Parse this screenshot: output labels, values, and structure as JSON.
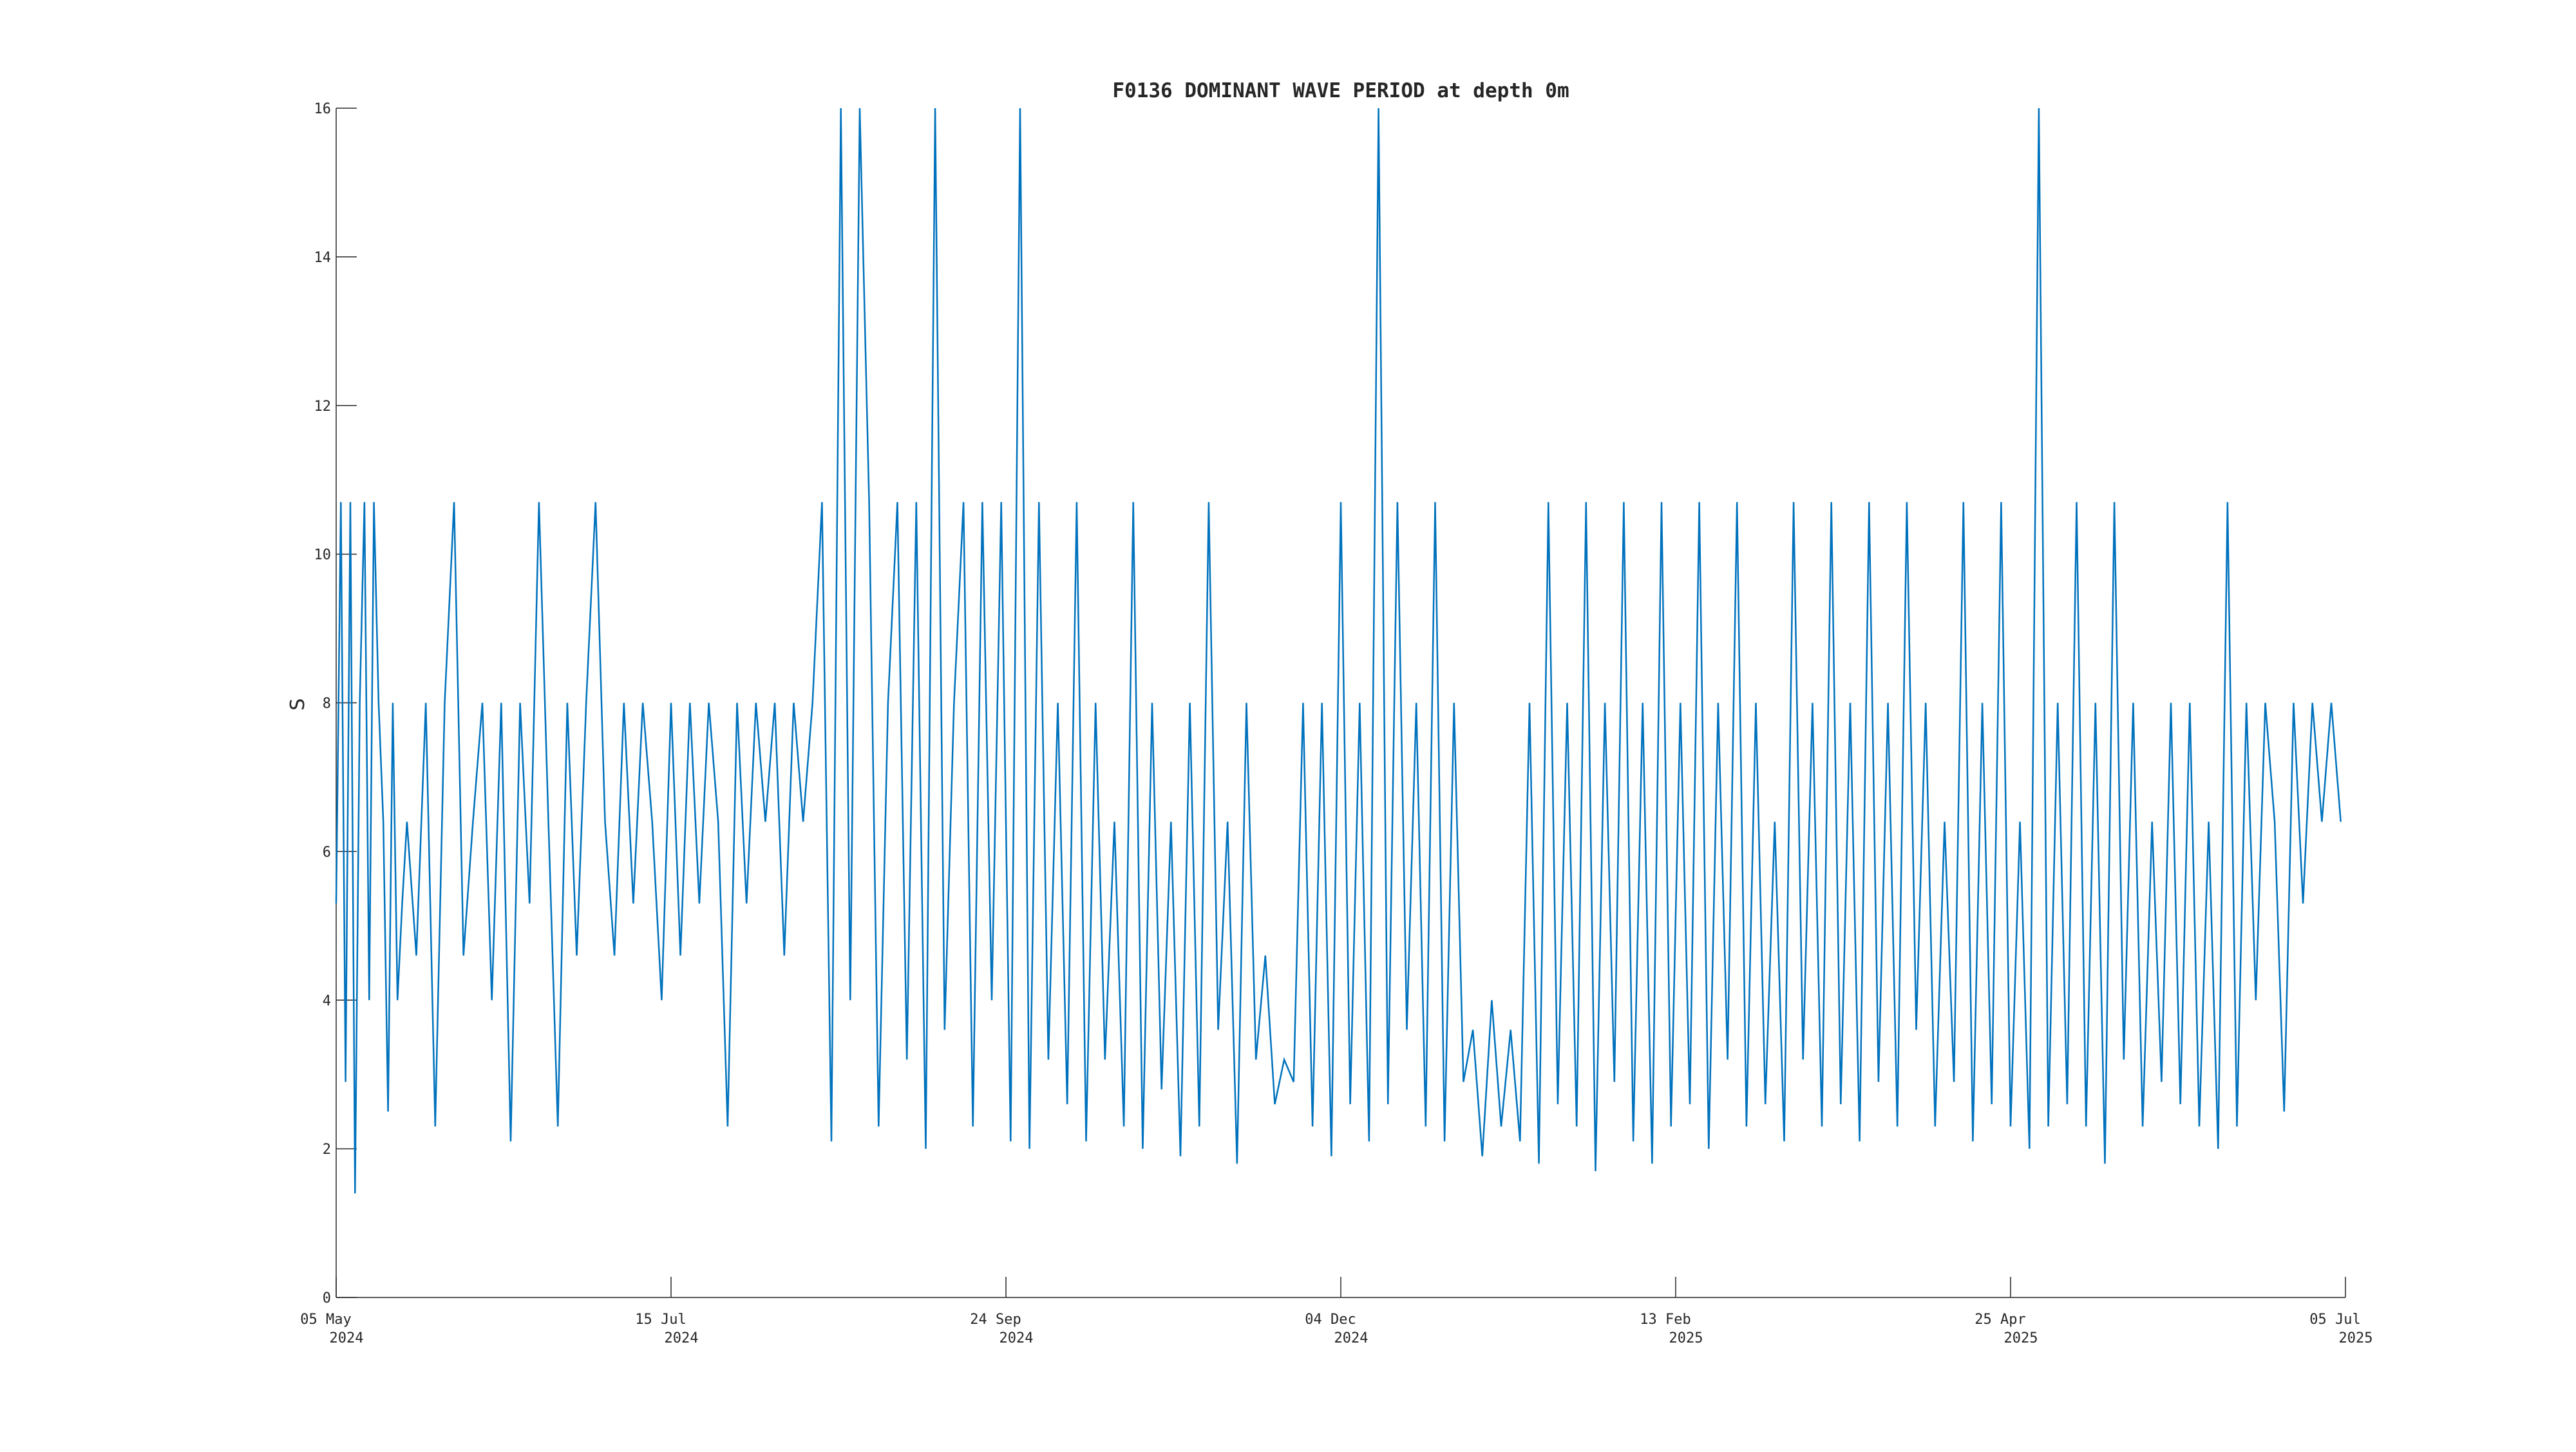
{
  "chart_data": {
    "type": "line",
    "title": "F0136 DOMINANT WAVE PERIOD at depth 0m",
    "xlabel": "",
    "ylabel": "S",
    "ylim": [
      0,
      16
    ],
    "xlim": [
      "2024-05-05",
      "2025-07-05"
    ],
    "grid": false,
    "line_color": "#0072bd",
    "y_ticks": [
      {
        "value": 0,
        "label": "0"
      },
      {
        "value": 2,
        "label": "2"
      },
      {
        "value": 4,
        "label": "4"
      },
      {
        "value": 6,
        "label": "6"
      },
      {
        "value": 8,
        "label": "8"
      },
      {
        "value": 10,
        "label": "10"
      },
      {
        "value": 12,
        "label": "12"
      },
      {
        "value": 14,
        "label": "14"
      },
      {
        "value": 16,
        "label": "16"
      }
    ],
    "x_ticks": [
      {
        "date": "2024-05-05",
        "label": "05 May",
        "sublabel": "2024"
      },
      {
        "date": "2024-07-15",
        "label": "15 Jul",
        "sublabel": "2024"
      },
      {
        "date": "2024-09-24",
        "label": "24 Sep",
        "sublabel": "2024"
      },
      {
        "date": "2024-12-04",
        "label": "04 Dec",
        "sublabel": "2024"
      },
      {
        "date": "2025-02-13",
        "label": "13 Feb",
        "sublabel": "2025"
      },
      {
        "date": "2025-04-25",
        "label": "25 Apr",
        "sublabel": "2025"
      },
      {
        "date": "2025-07-05",
        "label": "05 Jul",
        "sublabel": "2025"
      }
    ],
    "series": [
      {
        "x": [
          "2024-05-05",
          "2024-05-06",
          "2024-05-07",
          "2024-05-08",
          "2024-05-09",
          "2024-05-10",
          "2024-05-11",
          "2024-05-12",
          "2024-05-13",
          "2024-05-14",
          "2024-05-15",
          "2024-05-16",
          "2024-05-17",
          "2024-05-18",
          "2024-05-19",
          "2024-05-20",
          "2024-05-22",
          "2024-05-24",
          "2024-05-26",
          "2024-05-28",
          "2024-05-30",
          "2024-06-01",
          "2024-06-03",
          "2024-06-05",
          "2024-06-07",
          "2024-06-09",
          "2024-06-11",
          "2024-06-13",
          "2024-06-15",
          "2024-06-17",
          "2024-06-19",
          "2024-06-21",
          "2024-06-23",
          "2024-06-25",
          "2024-06-27",
          "2024-06-29",
          "2024-07-01",
          "2024-07-03",
          "2024-07-05",
          "2024-07-07",
          "2024-07-09",
          "2024-07-11",
          "2024-07-13",
          "2024-07-15",
          "2024-07-17",
          "2024-07-19",
          "2024-07-21",
          "2024-07-23",
          "2024-07-25",
          "2024-07-27",
          "2024-07-29",
          "2024-07-31",
          "2024-08-02",
          "2024-08-04",
          "2024-08-06",
          "2024-08-08",
          "2024-08-10",
          "2024-08-12",
          "2024-08-14",
          "2024-08-16",
          "2024-08-18",
          "2024-08-20",
          "2024-08-22",
          "2024-08-24",
          "2024-08-26",
          "2024-08-28",
          "2024-08-30",
          "2024-09-01",
          "2024-09-03",
          "2024-09-05",
          "2024-09-07",
          "2024-09-09",
          "2024-09-11",
          "2024-09-13",
          "2024-09-15",
          "2024-09-17",
          "2024-09-19",
          "2024-09-21",
          "2024-09-23",
          "2024-09-25",
          "2024-09-27",
          "2024-09-29",
          "2024-10-01",
          "2024-10-03",
          "2024-10-05",
          "2024-10-07",
          "2024-10-09",
          "2024-10-11",
          "2024-10-13",
          "2024-10-15",
          "2024-10-17",
          "2024-10-19",
          "2024-10-21",
          "2024-10-23",
          "2024-10-25",
          "2024-10-27",
          "2024-10-29",
          "2024-10-31",
          "2024-11-02",
          "2024-11-04",
          "2024-11-06",
          "2024-11-08",
          "2024-11-10",
          "2024-11-12",
          "2024-11-14",
          "2024-11-16",
          "2024-11-18",
          "2024-11-20",
          "2024-11-22",
          "2024-11-24",
          "2024-11-26",
          "2024-11-28",
          "2024-11-30",
          "2024-12-02",
          "2024-12-04",
          "2024-12-06",
          "2024-12-08",
          "2024-12-10",
          "2024-12-12",
          "2024-12-14",
          "2024-12-16",
          "2024-12-18",
          "2024-12-20",
          "2024-12-22",
          "2024-12-24",
          "2024-12-26",
          "2024-12-28",
          "2024-12-30",
          "2025-01-01",
          "2025-01-03",
          "2025-01-05",
          "2025-01-07",
          "2025-01-09",
          "2025-01-11",
          "2025-01-13",
          "2025-01-15",
          "2025-01-17",
          "2025-01-19",
          "2025-01-21",
          "2025-01-23",
          "2025-01-25",
          "2025-01-27",
          "2025-01-29",
          "2025-01-31",
          "2025-02-02",
          "2025-02-04",
          "2025-02-06",
          "2025-02-08",
          "2025-02-10",
          "2025-02-12",
          "2025-02-14",
          "2025-02-16",
          "2025-02-18",
          "2025-02-20",
          "2025-02-22",
          "2025-02-24",
          "2025-02-26",
          "2025-02-28",
          "2025-03-02",
          "2025-03-04",
          "2025-03-06",
          "2025-03-08",
          "2025-03-10",
          "2025-03-12",
          "2025-03-14",
          "2025-03-16",
          "2025-03-18",
          "2025-03-20",
          "2025-03-22",
          "2025-03-24",
          "2025-03-26",
          "2025-03-28",
          "2025-03-30",
          "2025-04-01",
          "2025-04-03",
          "2025-04-05",
          "2025-04-07",
          "2025-04-09",
          "2025-04-11",
          "2025-04-13",
          "2025-04-15",
          "2025-04-17",
          "2025-04-19",
          "2025-04-21",
          "2025-04-23",
          "2025-04-25",
          "2025-04-27",
          "2025-04-29",
          "2025-05-01",
          "2025-05-03",
          "2025-05-05",
          "2025-05-07",
          "2025-05-09",
          "2025-05-11",
          "2025-05-13",
          "2025-05-15",
          "2025-05-17",
          "2025-05-19",
          "2025-05-21",
          "2025-05-23",
          "2025-05-25",
          "2025-05-27",
          "2025-05-29",
          "2025-05-31",
          "2025-06-02",
          "2025-06-04",
          "2025-06-06",
          "2025-06-08",
          "2025-06-10",
          "2025-06-12",
          "2025-06-14",
          "2025-06-16",
          "2025-06-18",
          "2025-06-20",
          "2025-06-22",
          "2025-06-24",
          "2025-06-26",
          "2025-06-28",
          "2025-06-30",
          "2025-07-02",
          "2025-07-04"
        ],
        "y": [
          5.3,
          10.7,
          2.9,
          10.7,
          1.4,
          8.0,
          10.7,
          4.0,
          10.7,
          8.0,
          6.4,
          2.5,
          8.0,
          4.0,
          5.3,
          6.4,
          4.6,
          8.0,
          2.3,
          8.0,
          10.7,
          4.6,
          6.4,
          8.0,
          4.0,
          8.0,
          2.1,
          8.0,
          5.3,
          10.7,
          6.4,
          2.3,
          8.0,
          4.6,
          8.0,
          10.7,
          6.4,
          4.6,
          8.0,
          5.3,
          8.0,
          6.4,
          4.0,
          8.0,
          4.6,
          8.0,
          5.3,
          8.0,
          6.4,
          2.3,
          8.0,
          5.3,
          8.0,
          6.4,
          8.0,
          4.6,
          8.0,
          6.4,
          8.0,
          10.7,
          2.1,
          16.0,
          4.0,
          16.0,
          10.7,
          2.3,
          8.0,
          10.7,
          3.2,
          10.7,
          2.0,
          16.0,
          3.6,
          8.0,
          10.7,
          2.3,
          10.7,
          4.0,
          10.7,
          2.1,
          16.0,
          2.0,
          10.7,
          3.2,
          8.0,
          2.6,
          10.7,
          2.1,
          8.0,
          3.2,
          6.4,
          2.3,
          10.7,
          2.0,
          8.0,
          2.8,
          6.4,
          1.9,
          8.0,
          2.3,
          10.7,
          3.6,
          6.4,
          1.8,
          8.0,
          3.2,
          4.6,
          2.6,
          3.2,
          2.9,
          8.0,
          2.3,
          8.0,
          1.9,
          10.7,
          2.6,
          8.0,
          2.1,
          16.0,
          2.6,
          10.7,
          3.6,
          8.0,
          2.3,
          10.7,
          2.1,
          8.0,
          2.9,
          3.6,
          1.9,
          4.0,
          2.3,
          3.6,
          2.1,
          8.0,
          1.8,
          10.7,
          2.6,
          8.0,
          2.3,
          10.7,
          1.7,
          8.0,
          2.9,
          10.7,
          2.1,
          8.0,
          1.8,
          10.7,
          2.3,
          8.0,
          2.6,
          10.7,
          2.0,
          8.0,
          3.2,
          10.7,
          2.3,
          8.0,
          2.6,
          6.4,
          2.1,
          10.7,
          3.2,
          8.0,
          2.3,
          10.7,
          2.6,
          8.0,
          2.1,
          10.7,
          2.9,
          8.0,
          2.3,
          10.7,
          3.6,
          8.0,
          2.3,
          6.4,
          2.9,
          10.7,
          2.1,
          8.0,
          2.6,
          10.7,
          2.3,
          6.4,
          2.0,
          16.0,
          2.3,
          8.0,
          2.6,
          10.7,
          2.3,
          8.0,
          1.8,
          10.7,
          3.2,
          8.0,
          2.3,
          6.4,
          2.9,
          8.0,
          2.6,
          8.0,
          2.3,
          6.4,
          2.0,
          10.7,
          2.3,
          8.0,
          4.0,
          8.0,
          6.4,
          2.5,
          8.0,
          5.3,
          8.0,
          6.4,
          8.0,
          6.4
        ],
        "note": ""
      }
    ]
  }
}
